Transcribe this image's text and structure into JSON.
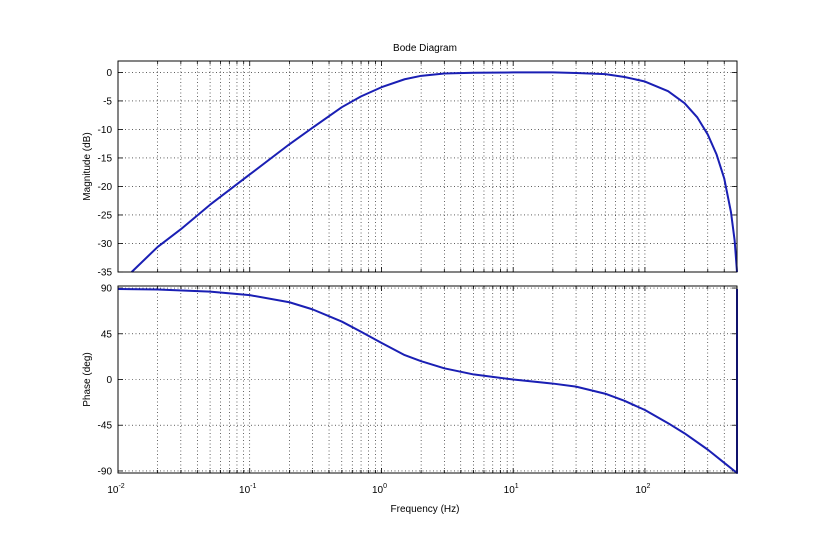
{
  "chart_data": [
    {
      "type": "line",
      "title": "Bode Diagram",
      "xlabel": "",
      "ylabel": "Magnitude (dB)",
      "xscale": "log",
      "xlim": [
        0.01,
        500
      ],
      "ylim": [
        -35,
        2
      ],
      "grid": true,
      "yticks": [
        0,
        -5,
        -10,
        -15,
        -20,
        -25,
        -30,
        -35
      ],
      "ytick_labels": [
        "0",
        "-5",
        "-10",
        "-15",
        "-20",
        "-25",
        "-30",
        "-35"
      ],
      "series": [
        {
          "color": "#1a1fb4",
          "x": [
            0.0127,
            0.02,
            0.03,
            0.05,
            0.1,
            0.2,
            0.3,
            0.5,
            0.7,
            1,
            1.5,
            2,
            3,
            5,
            10,
            20,
            30,
            50,
            70,
            100,
            150,
            200,
            250,
            300,
            350,
            400,
            450,
            480,
            500
          ],
          "y": [
            -35,
            -30.6,
            -27.5,
            -23.2,
            -17.9,
            -12.6,
            -9.7,
            -6.1,
            -4.2,
            -2.6,
            -1.2,
            -0.6,
            -0.2,
            -0.05,
            0,
            0,
            -0.1,
            -0.3,
            -0.8,
            -1.6,
            -3.3,
            -5.4,
            -7.9,
            -10.9,
            -14.4,
            -18.6,
            -24.5,
            -29.5,
            -35
          ]
        }
      ]
    },
    {
      "type": "line",
      "title": "",
      "xlabel": "Frequency  (Hz)",
      "ylabel": "Phase (deg)",
      "xscale": "log",
      "xlim": [
        0.01,
        500
      ],
      "ylim": [
        -92,
        92
      ],
      "grid": true,
      "xticks": [
        0.01,
        0.1,
        1,
        10,
        100
      ],
      "xtick_labels": [
        {
          "base": "10",
          "exp": "-2"
        },
        {
          "base": "10",
          "exp": "-1"
        },
        {
          "base": "10",
          "exp": "0"
        },
        {
          "base": "10",
          "exp": "1"
        },
        {
          "base": "10",
          "exp": "2"
        }
      ],
      "yticks": [
        90,
        45,
        0,
        -45,
        -90
      ],
      "ytick_labels": [
        "90",
        "45",
        "0",
        "-45",
        "-90"
      ],
      "series": [
        {
          "color": "#1a1fb4",
          "x": [
            0.01,
            0.02,
            0.05,
            0.1,
            0.2,
            0.3,
            0.5,
            0.7,
            1,
            1.5,
            2,
            3,
            5,
            10,
            20,
            30,
            50,
            70,
            100,
            150,
            200,
            300,
            400,
            500,
            500
          ],
          "y": [
            89,
            88.5,
            86.5,
            83,
            76,
            69,
            57,
            47,
            36,
            24,
            18,
            11,
            5,
            0,
            -4,
            -7,
            -14,
            -21,
            -30,
            -43,
            -53,
            -69,
            -82,
            -92,
            89
          ]
        }
      ]
    }
  ]
}
